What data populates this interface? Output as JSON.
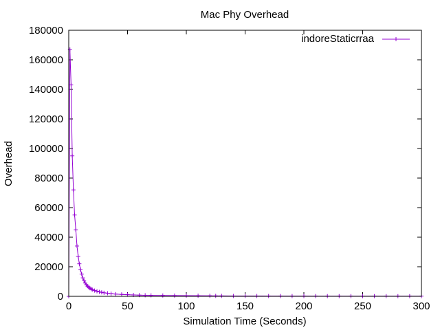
{
  "chart_data": {
    "type": "line",
    "title": "Mac Phy Overhead",
    "xlabel": "Simulation Time (Seconds)",
    "ylabel": "Overhead",
    "xlim": [
      0,
      300
    ],
    "ylim": [
      0,
      180000
    ],
    "x_ticks": [
      "0",
      "50",
      "100",
      "150",
      "200",
      "250",
      "300"
    ],
    "y_ticks": [
      "0",
      "20000",
      "40000",
      "60000",
      "80000",
      "100000",
      "120000",
      "140000",
      "160000",
      "180000"
    ],
    "grid": false,
    "legend_position": "top-right",
    "series": [
      {
        "name": "indoreStaticrraa",
        "color": "#9400d3",
        "marker": "plus",
        "x": [
          0,
          1,
          2,
          3,
          4,
          5,
          6,
          7,
          8,
          9,
          10,
          11,
          12,
          13,
          14,
          15,
          16,
          17,
          18,
          19,
          20,
          22,
          24,
          26,
          28,
          30,
          33,
          36,
          40,
          45,
          50,
          55,
          60,
          65,
          70,
          80,
          90,
          100,
          110,
          120,
          125,
          130,
          140,
          150,
          160,
          170,
          180,
          190,
          200,
          210,
          220,
          230,
          240,
          250,
          260,
          270,
          280,
          290,
          300
        ],
        "y": [
          0,
          167000,
          143000,
          95000,
          72000,
          55000,
          45000,
          34000,
          27000,
          22000,
          18000,
          15000,
          12500,
          10500,
          9000,
          7800,
          6900,
          6100,
          5500,
          5000,
          4500,
          3900,
          3400,
          3000,
          2700,
          2400,
          2100,
          1800,
          1500,
          1300,
          1100,
          950,
          800,
          700,
          650,
          550,
          500,
          450,
          400,
          350,
          300,
          280,
          250,
          230,
          210,
          200,
          190,
          180,
          170,
          160,
          150,
          145,
          140,
          135,
          130,
          125,
          120,
          115,
          110
        ]
      }
    ]
  }
}
